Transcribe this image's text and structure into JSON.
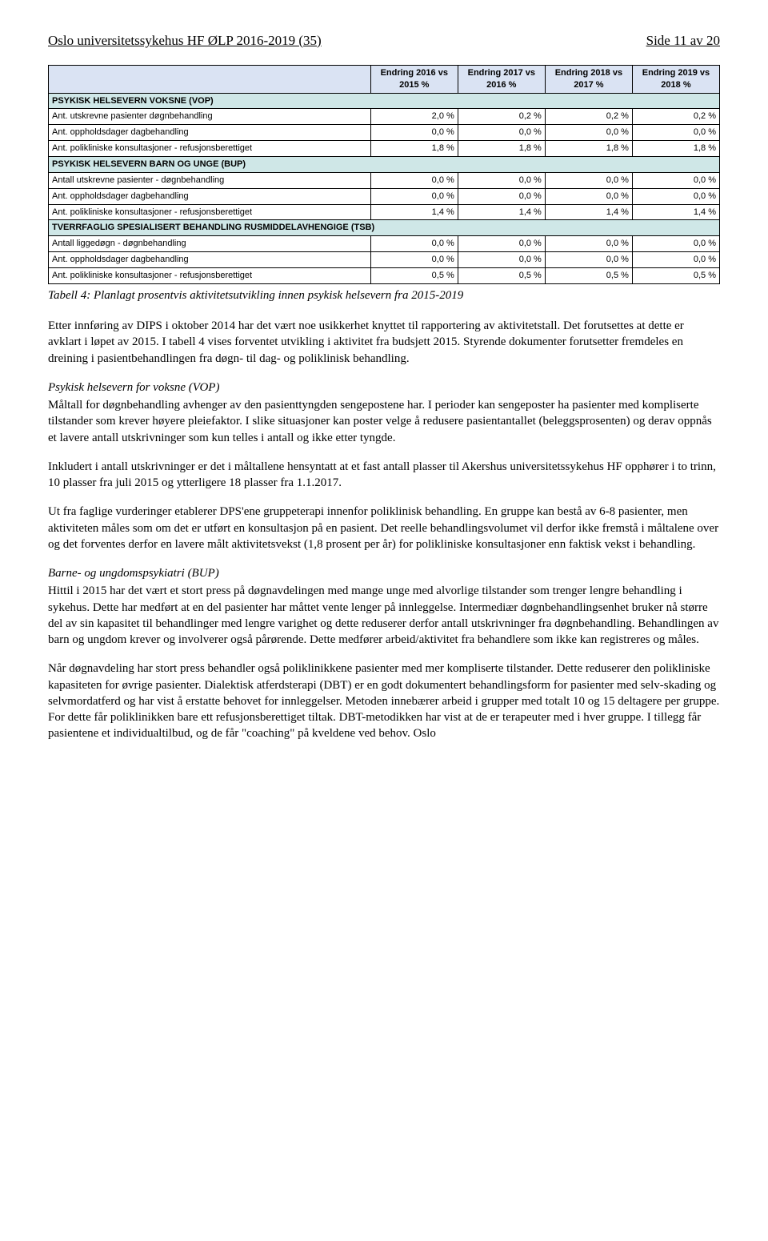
{
  "header": {
    "left": "Oslo universitetssykehus HF ØLP 2016-2019 (35)",
    "right": "Side 11 av 20"
  },
  "table": {
    "col_headers": [
      "Endring 2016 vs 2015 %",
      "Endring 2017 vs 2016 %",
      "Endring 2018 vs 2017 %",
      "Endring 2019 vs 2018 %"
    ],
    "section_bg": "#cfe7e7",
    "header_bg": "#dae3f3",
    "sections": [
      {
        "title": "PSYKISK HELSEVERN VOKSNE (VOP)",
        "rows": [
          {
            "label": "Ant. utskrevne pasienter døgnbehandling",
            "vals": [
              "2,0 %",
              "0,2 %",
              "0,2 %",
              "0,2 %"
            ]
          },
          {
            "label": "Ant. oppholdsdager dagbehandling",
            "vals": [
              "0,0 %",
              "0,0 %",
              "0,0 %",
              "0,0 %"
            ]
          },
          {
            "label": "Ant. polikliniske konsultasjoner - refusjonsberettiget",
            "vals": [
              "1,8 %",
              "1,8 %",
              "1,8 %",
              "1,8 %"
            ]
          }
        ]
      },
      {
        "title": "PSYKISK HELSEVERN BARN OG UNGE (BUP)",
        "rows": [
          {
            "label": "Antall utskrevne pasienter - døgnbehandling",
            "vals": [
              "0,0 %",
              "0,0 %",
              "0,0 %",
              "0,0 %"
            ]
          },
          {
            "label": "Ant. oppholdsdager dagbehandling",
            "vals": [
              "0,0 %",
              "0,0 %",
              "0,0 %",
              "0,0 %"
            ]
          },
          {
            "label": "Ant. polikliniske konsultasjoner - refusjonsberettiget",
            "vals": [
              "1,4 %",
              "1,4 %",
              "1,4 %",
              "1,4 %"
            ]
          }
        ]
      },
      {
        "title": "TVERRFAGLIG SPESIALISERT BEHANDLING RUSMIDDELAVHENGIGE (TSB)",
        "rows": [
          {
            "label": "Antall liggedøgn - døgnbehandling",
            "vals": [
              "0,0 %",
              "0,0 %",
              "0,0 %",
              "0,0 %"
            ]
          },
          {
            "label": "Ant. oppholdsdager dagbehandling",
            "vals": [
              "0,0 %",
              "0,0 %",
              "0,0 %",
              "0,0 %"
            ]
          },
          {
            "label": "Ant. polikliniske konsultasjoner - refusjonsberettiget",
            "vals": [
              "0,5 %",
              "0,5 %",
              "0,5 %",
              "0,5 %"
            ]
          }
        ]
      }
    ]
  },
  "caption": "Tabell 4: Planlagt prosentvis aktivitetsutvikling innen psykisk helsevern fra 2015-2019",
  "paragraphs": {
    "p1": "Etter innføring av DIPS i oktober 2014 har det vært noe usikkerhet knyttet til rapportering av aktivitetstall. Det forutsettes at dette er avklart i løpet av 2015. I tabell 4 vises forventet utvikling i aktivitet fra budsjett 2015. Styrende dokumenter forutsetter fremdeles en dreining i pasientbehandlingen fra døgn- til dag- og poliklinisk behandling.",
    "sh1": "Psykisk helsevern for voksne (VOP)",
    "p2": "Måltall for døgnbehandling avhenger av den pasienttyngden sengepostene har. I perioder kan sengeposter ha pasienter med kompliserte tilstander som krever høyere pleiefaktor. I slike situasjoner kan poster velge å redusere pasientantallet (beleggsprosenten) og derav oppnås et lavere antall utskrivninger som kun telles i antall og ikke etter tyngde.",
    "p3": "Inkludert i antall utskrivninger er det i måltallene hensyntatt at et fast antall plasser til Akershus universitetssykehus HF opphører i to trinn, 10 plasser fra juli 2015 og ytterligere 18 plasser fra 1.1.2017.",
    "p4": "Ut fra faglige vurderinger etablerer DPS'ene gruppeterapi innenfor poliklinisk behandling. En gruppe kan bestå av 6-8 pasienter, men aktiviteten måles som om det er utført en konsultasjon på en pasient. Det reelle behandlingsvolumet vil derfor ikke fremstå i måltalene over og det forventes derfor en lavere målt aktivitetsvekst (1,8 prosent per år) for polikliniske konsultasjoner enn faktisk vekst i behandling.",
    "sh2": "Barne- og ungdomspsykiatri (BUP)",
    "p5": "Hittil i 2015 har det vært et stort press på døgnavdelingen med mange unge med alvorlige tilstander som trenger lengre behandling i sykehus. Dette har medført at en del pasienter har måttet vente lenger på innleggelse. Intermediær døgnbehandlingsenhet bruker nå større del av sin kapasitet til behandlinger med lengre varighet og dette reduserer derfor antall utskrivninger fra døgnbehandling. Behandlingen av barn og ungdom krever og involverer også pårørende. Dette medfører arbeid/aktivitet fra behandlere som ikke kan registreres og måles.",
    "p6": "Når døgnavdeling har stort press behandler også poliklinikkene pasienter med mer kompliserte tilstander. Dette reduserer den polikliniske kapasiteten for øvrige pasienter. Dialektisk atferdsterapi (DBT) er en godt dokumentert behandlingsform for pasienter med selv-skading og selvmordatferd og har vist å erstatte behovet for innleggelser. Metoden innebærer arbeid i grupper med totalt 10 og 15 deltagere per gruppe. For dette får poliklinikken bare ett refusjonsberettiget tiltak. DBT-metodikken har vist at de er terapeuter med i hver gruppe. I tillegg får pasientene et individualtilbud, og de får \"coaching\" på kveldene ved behov. Oslo"
  }
}
